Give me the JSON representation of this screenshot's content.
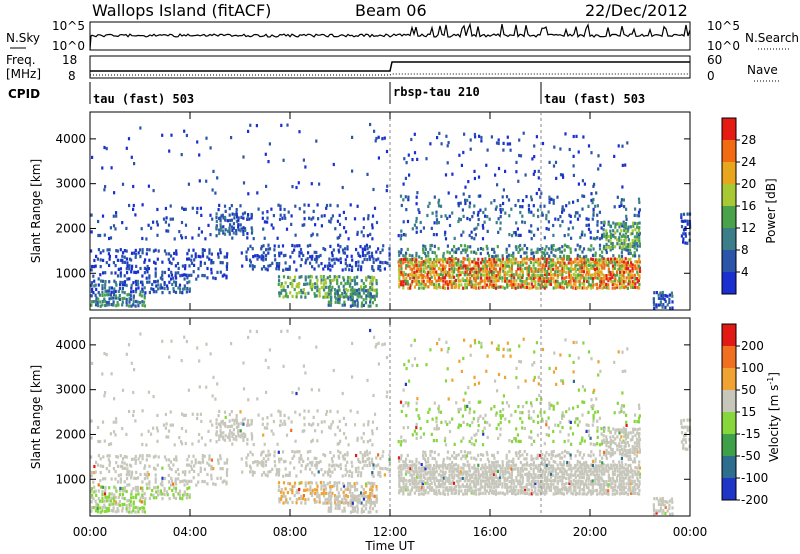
{
  "header": {
    "site": "Wallops Island (fitACF)",
    "beam": "Beam 06",
    "date": "22/Dec/2012"
  },
  "top_panel": {
    "left_label": "N.Sky",
    "right_label": "N.Search",
    "left_ticks": [
      "10^5",
      "10^0"
    ],
    "right_ticks": [
      "10^5",
      "10^0"
    ]
  },
  "freq_panel": {
    "left_label_1": "Freq.",
    "left_label_2": "[MHz]",
    "right_label": "Nave",
    "left_ticks": [
      "18",
      "8"
    ],
    "right_ticks": [
      "60",
      "0"
    ]
  },
  "cpid": {
    "label": "CPID",
    "segments": [
      {
        "name": "tau (fast) 503",
        "start_hour": 0
      },
      {
        "name": "rbsp-tau 210",
        "start_hour": 12
      },
      {
        "name": "tau (fast) 503",
        "start_hour": 18
      }
    ]
  },
  "chart_data": [
    {
      "type": "heatmap",
      "panel": "power",
      "xlabel": "Time UT",
      "ylabel": "Slant Range [km]",
      "x_range_hours": [
        0,
        24
      ],
      "x_ticks": [
        "00:00",
        "04:00",
        "08:00",
        "12:00",
        "16:00",
        "20:00",
        "00:00"
      ],
      "y_range": [
        180,
        4600
      ],
      "y_ticks": [
        1000,
        2000,
        3000,
        4000
      ],
      "colorbar_label": "Power [dB]",
      "colorbar_ticks": [
        "4",
        "8",
        "12",
        "16",
        "20",
        "24",
        "28"
      ],
      "colors": [
        "#1a2fcf",
        "#2a55a8",
        "#3b7e8a",
        "#4aa24a",
        "#a7c933",
        "#e8a61e",
        "#f26a12",
        "#e41c14"
      ]
    },
    {
      "type": "heatmap",
      "panel": "velocity",
      "xlabel": "Time UT",
      "ylabel": "Slant Range [km]",
      "x_range_hours": [
        0,
        24
      ],
      "x_ticks": [
        "00:00",
        "04:00",
        "08:00",
        "12:00",
        "16:00",
        "20:00",
        "00:00"
      ],
      "y_range": [
        180,
        4600
      ],
      "y_ticks": [
        1000,
        2000,
        3000,
        4000
      ],
      "colorbar_label": "Velocity [m s",
      "colorbar_label_sup": "-1",
      "colorbar_label_end": "]",
      "colorbar_ticks": [
        "200",
        "100",
        "50",
        "15",
        "-15",
        "-50",
        "-100",
        "-200"
      ],
      "colors": [
        "#1f35c8",
        "#2d6e8e",
        "#3fa04a",
        "#86d63c",
        "#c6c6bb",
        "#f0a232",
        "#f07020",
        "#e21a16"
      ]
    }
  ]
}
